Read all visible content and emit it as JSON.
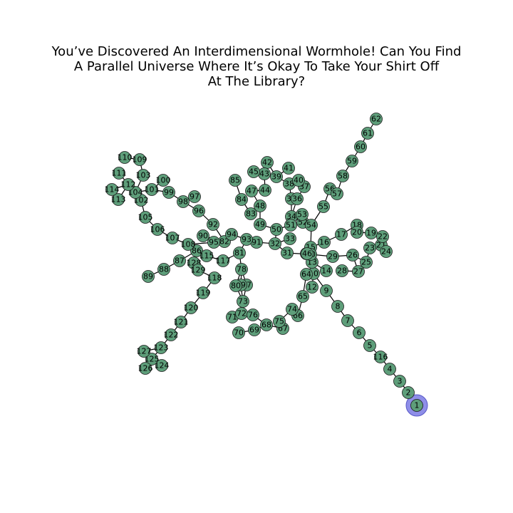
{
  "title_lines": [
    "You’ve Discovered An Interdimensional Wormhole! Can You Find",
    "A Parallel Universe Where It’s Okay To Take Your Shirt Off",
    "At The Library?"
  ],
  "colors": {
    "node": "#5e9e7a",
    "highlight": "#8e8ee8",
    "edge": "#000000"
  },
  "current_node": "1",
  "nodes": [
    [
      "1",
      585,
      569
    ],
    [
      "2",
      573,
      551
    ],
    [
      "3",
      561,
      535
    ],
    [
      "4",
      547,
      518
    ],
    [
      "116",
      534,
      501
    ],
    [
      "5",
      519,
      485
    ],
    [
      "6",
      504,
      467
    ],
    [
      "7",
      488,
      450
    ],
    [
      "8",
      474,
      430
    ],
    [
      "9",
      458,
      408
    ],
    [
      "10",
      440,
      384
    ],
    [
      "11",
      430,
      356
    ],
    [
      "12",
      438,
      403
    ],
    [
      "13",
      438,
      368
    ],
    [
      "14",
      458,
      380
    ],
    [
      "15",
      436,
      347
    ],
    [
      "16",
      455,
      340
    ],
    [
      "17",
      479,
      329
    ],
    [
      "18",
      501,
      316
    ],
    [
      "19",
      521,
      327
    ],
    [
      "20",
      501,
      326
    ],
    [
      "21",
      535,
      344
    ],
    [
      "22",
      537,
      332
    ],
    [
      "23",
      519,
      348
    ],
    [
      "24",
      542,
      353
    ],
    [
      "25",
      514,
      368
    ],
    [
      "26",
      495,
      358
    ],
    [
      "27",
      503,
      381
    ],
    [
      "28",
      480,
      380
    ],
    [
      "29",
      467,
      360
    ],
    [
      "30",
      436,
      357
    ],
    [
      "31",
      403,
      355
    ],
    [
      "32",
      386,
      342
    ],
    [
      "33",
      407,
      335
    ],
    [
      "34",
      409,
      304
    ],
    [
      "35",
      409,
      279
    ],
    [
      "36",
      417,
      279
    ],
    [
      "37",
      427,
      262
    ],
    [
      "38",
      406,
      258
    ],
    [
      "39",
      388,
      248
    ],
    [
      "40",
      419,
      253
    ],
    [
      "41",
      405,
      236
    ],
    [
      "42",
      375,
      228
    ],
    [
      "43",
      371,
      244
    ],
    [
      "44",
      372,
      267
    ],
    [
      "45",
      356,
      241
    ],
    [
      "46",
      431,
      356
    ],
    [
      "47",
      353,
      268
    ],
    [
      "48",
      365,
      289
    ],
    [
      "49",
      365,
      315
    ],
    [
      "50",
      388,
      322
    ],
    [
      "51",
      408,
      316
    ],
    [
      "52",
      425,
      312
    ],
    [
      "53",
      424,
      301
    ],
    [
      "54",
      437,
      316
    ],
    [
      "55",
      454,
      290
    ],
    [
      "56",
      463,
      265
    ],
    [
      "57",
      473,
      272
    ],
    [
      "58",
      481,
      247
    ],
    [
      "59",
      494,
      226
    ],
    [
      "60",
      506,
      206
    ],
    [
      "61",
      516,
      187
    ],
    [
      "62",
      528,
      167
    ],
    [
      "64",
      430,
      385
    ],
    [
      "65",
      425,
      416
    ],
    [
      "66",
      418,
      443
    ],
    [
      "67",
      397,
      461
    ],
    [
      "68",
      374,
      456
    ],
    [
      "69",
      357,
      463
    ],
    [
      "70",
      335,
      467
    ],
    [
      "71",
      326,
      445
    ],
    [
      "72",
      339,
      440
    ],
    [
      "73",
      341,
      423
    ],
    [
      "74",
      410,
      434
    ],
    [
      "75",
      392,
      451
    ],
    [
      "76",
      355,
      442
    ],
    [
      "77",
      346,
      400
    ],
    [
      "78",
      339,
      378
    ],
    [
      "79",
      338,
      400
    ],
    [
      "80",
      331,
      401
    ],
    [
      "81",
      336,
      355
    ],
    [
      "82",
      315,
      339
    ],
    [
      "83",
      352,
      300
    ],
    [
      "84",
      339,
      280
    ],
    [
      "85",
      330,
      253
    ],
    [
      "86",
      276,
      352
    ],
    [
      "87",
      252,
      366
    ],
    [
      "88",
      230,
      378
    ],
    [
      "89",
      208,
      388
    ],
    [
      "90",
      285,
      331
    ],
    [
      "91",
      360,
      340
    ],
    [
      "92",
      299,
      315
    ],
    [
      "93",
      346,
      336
    ],
    [
      "94",
      325,
      329
    ],
    [
      "95",
      300,
      340
    ],
    [
      "96",
      279,
      296
    ],
    [
      "97",
      273,
      276
    ],
    [
      "98",
      257,
      283
    ],
    [
      "99",
      237,
      270
    ],
    [
      "100",
      229,
      253
    ],
    [
      "101",
      213,
      266
    ],
    [
      "102",
      198,
      281
    ],
    [
      "103",
      201,
      246
    ],
    [
      "104",
      190,
      270
    ],
    [
      "105",
      204,
      305
    ],
    [
      "106",
      221,
      322
    ],
    [
      "107",
      242,
      334
    ],
    [
      "108",
      264,
      343
    ],
    [
      "109",
      196,
      224
    ],
    [
      "110",
      175,
      221
    ],
    [
      "111",
      167,
      243
    ],
    [
      "112",
      180,
      259
    ],
    [
      "113",
      166,
      280
    ],
    [
      "114",
      157,
      266
    ],
    [
      "115",
      290,
      359
    ],
    [
      "117",
      313,
      366
    ],
    [
      "118",
      301,
      390
    ],
    [
      "119",
      285,
      411
    ],
    [
      "120",
      268,
      432
    ],
    [
      "121",
      254,
      452
    ],
    [
      "122",
      240,
      470
    ],
    [
      "123",
      226,
      488
    ],
    [
      "124",
      227,
      513
    ],
    [
      "125",
      213,
      504
    ],
    [
      "126",
      204,
      517
    ],
    [
      "127",
      202,
      493
    ],
    [
      "128",
      272,
      369
    ],
    [
      "129",
      278,
      379
    ]
  ],
  "edges": [
    [
      "1",
      "2"
    ],
    [
      "2",
      "3"
    ],
    [
      "3",
      "4"
    ],
    [
      "4",
      "116"
    ],
    [
      "116",
      "5"
    ],
    [
      "5",
      "6"
    ],
    [
      "6",
      "7"
    ],
    [
      "7",
      "8"
    ],
    [
      "8",
      "9"
    ],
    [
      "9",
      "10"
    ],
    [
      "10",
      "12"
    ],
    [
      "10",
      "64"
    ],
    [
      "10",
      "13"
    ],
    [
      "13",
      "14"
    ],
    [
      "13",
      "11"
    ],
    [
      "11",
      "30"
    ],
    [
      "11",
      "46"
    ],
    [
      "30",
      "29"
    ],
    [
      "29",
      "26"
    ],
    [
      "26",
      "25"
    ],
    [
      "25",
      "23"
    ],
    [
      "23",
      "21"
    ],
    [
      "21",
      "24"
    ],
    [
      "21",
      "22"
    ],
    [
      "22",
      "19"
    ],
    [
      "19",
      "20"
    ],
    [
      "20",
      "18"
    ],
    [
      "18",
      "17"
    ],
    [
      "17",
      "16"
    ],
    [
      "16",
      "15"
    ],
    [
      "15",
      "54"
    ],
    [
      "26",
      "27"
    ],
    [
      "27",
      "28"
    ],
    [
      "30",
      "31"
    ],
    [
      "31",
      "32"
    ],
    [
      "32",
      "33"
    ],
    [
      "32",
      "50"
    ],
    [
      "50",
      "49"
    ],
    [
      "50",
      "51"
    ],
    [
      "51",
      "34"
    ],
    [
      "34",
      "35"
    ],
    [
      "34",
      "36"
    ],
    [
      "35",
      "38"
    ],
    [
      "36",
      "37"
    ],
    [
      "37",
      "40"
    ],
    [
      "38",
      "39"
    ],
    [
      "39",
      "41"
    ],
    [
      "39",
      "42"
    ],
    [
      "42",
      "43"
    ],
    [
      "43",
      "45"
    ],
    [
      "43",
      "44"
    ],
    [
      "44",
      "47"
    ],
    [
      "47",
      "48"
    ],
    [
      "48",
      "49"
    ],
    [
      "48",
      "83"
    ],
    [
      "83",
      "84"
    ],
    [
      "84",
      "85"
    ],
    [
      "51",
      "53"
    ],
    [
      "53",
      "52"
    ],
    [
      "52",
      "54"
    ],
    [
      "54",
      "55"
    ],
    [
      "55",
      "56"
    ],
    [
      "56",
      "57"
    ],
    [
      "57",
      "58"
    ],
    [
      "58",
      "59"
    ],
    [
      "59",
      "60"
    ],
    [
      "60",
      "61"
    ],
    [
      "61",
      "62"
    ],
    [
      "64",
      "65"
    ],
    [
      "65",
      "66"
    ],
    [
      "66",
      "74"
    ],
    [
      "74",
      "75"
    ],
    [
      "75",
      "67"
    ],
    [
      "67",
      "68"
    ],
    [
      "68",
      "69"
    ],
    [
      "69",
      "70"
    ],
    [
      "68",
      "76"
    ],
    [
      "76",
      "72"
    ],
    [
      "72",
      "71"
    ],
    [
      "72",
      "73"
    ],
    [
      "73",
      "79"
    ],
    [
      "73",
      "77"
    ],
    [
      "73",
      "80"
    ],
    [
      "79",
      "78"
    ],
    [
      "77",
      "78"
    ],
    [
      "80",
      "78"
    ],
    [
      "78",
      "81"
    ],
    [
      "81",
      "93"
    ],
    [
      "93",
      "91"
    ],
    [
      "91",
      "32"
    ],
    [
      "81",
      "117"
    ],
    [
      "117",
      "115"
    ],
    [
      "115",
      "86"
    ],
    [
      "86",
      "128"
    ],
    [
      "128",
      "129"
    ],
    [
      "129",
      "118"
    ],
    [
      "118",
      "119"
    ],
    [
      "119",
      "120"
    ],
    [
      "120",
      "121"
    ],
    [
      "121",
      "122"
    ],
    [
      "122",
      "123"
    ],
    [
      "123",
      "125"
    ],
    [
      "125",
      "124"
    ],
    [
      "125",
      "126"
    ],
    [
      "125",
      "127"
    ],
    [
      "123",
      "127"
    ],
    [
      "86",
      "87"
    ],
    [
      "87",
      "88"
    ],
    [
      "88",
      "89"
    ],
    [
      "86",
      "108"
    ],
    [
      "108",
      "107"
    ],
    [
      "107",
      "106"
    ],
    [
      "106",
      "105"
    ],
    [
      "105",
      "102"
    ],
    [
      "102",
      "104"
    ],
    [
      "104",
      "103"
    ],
    [
      "103",
      "109"
    ],
    [
      "109",
      "110"
    ],
    [
      "104",
      "112"
    ],
    [
      "112",
      "111"
    ],
    [
      "112",
      "113"
    ],
    [
      "112",
      "114"
    ],
    [
      "104",
      "101"
    ],
    [
      "101",
      "100"
    ],
    [
      "101",
      "99"
    ],
    [
      "99",
      "98"
    ],
    [
      "98",
      "97"
    ],
    [
      "98",
      "96"
    ],
    [
      "96",
      "92"
    ],
    [
      "92",
      "82"
    ],
    [
      "82",
      "95"
    ],
    [
      "82",
      "94"
    ],
    [
      "94",
      "93"
    ],
    [
      "82",
      "90"
    ],
    [
      "82",
      "108"
    ]
  ]
}
